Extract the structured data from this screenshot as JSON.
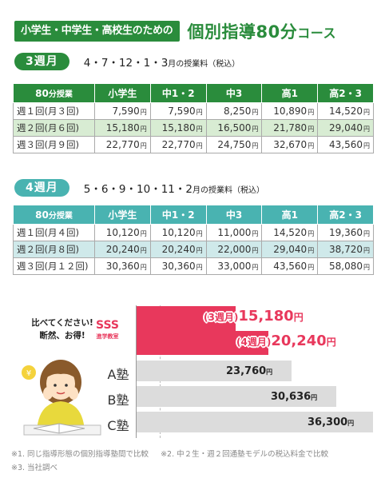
{
  "header": {
    "tag": "小学生・中学生・高校生のための",
    "title_main": "個別指導80分",
    "title_suffix": "コース"
  },
  "week3": {
    "badge": "3週月",
    "months": "4・7・12・1・3",
    "months_suffix": "月の授業料（税込）",
    "head_label": "80",
    "head_label_suffix": "分授業",
    "columns": [
      "小学生",
      "中1・2",
      "中3",
      "高1",
      "高2・3"
    ],
    "rows": [
      {
        "label": "週１回(月３回)",
        "values": [
          "7,590",
          "7,590",
          "8,250",
          "10,890",
          "14,520"
        ],
        "highlight": false
      },
      {
        "label": "週２回(月６回)",
        "values": [
          "15,180",
          "15,180",
          "16,500",
          "21,780",
          "29,040"
        ],
        "highlight": true
      },
      {
        "label": "週３回(月９回)",
        "values": [
          "22,770",
          "22,770",
          "24,750",
          "32,670",
          "43,560"
        ],
        "highlight": false
      }
    ]
  },
  "week4": {
    "badge": "4週月",
    "months": "5・6・9・10・11・2",
    "months_suffix": "月の授業料（税込）",
    "head_label": "80",
    "head_label_suffix": "分授業",
    "columns": [
      "小学生",
      "中1・2",
      "中3",
      "高1",
      "高2・3"
    ],
    "rows": [
      {
        "label": "週１回(月４回)",
        "values": [
          "10,120",
          "10,120",
          "11,000",
          "14,520",
          "19,360"
        ],
        "highlight": false
      },
      {
        "label": "週２回(月８回)",
        "values": [
          "20,240",
          "20,240",
          "22,000",
          "29,040",
          "38,720"
        ],
        "highlight": true
      },
      {
        "label": "週３回(月１２回)",
        "values": [
          "30,360",
          "30,360",
          "33,000",
          "43,560",
          "58,080"
        ],
        "highlight": false
      }
    ]
  },
  "yen_unit": "円",
  "comparison": {
    "speech_line1": "比べてください!",
    "speech_line2": "断然、お得!",
    "sss_name": "SSS",
    "sss_sub": "進学教室",
    "sss_bars": [
      {
        "prefix": "(3週月)",
        "value": 15180,
        "value_text": "15,180",
        "suffix": "円"
      },
      {
        "prefix": "(4週月)",
        "value": 20240,
        "value_text": "20,240",
        "suffix": "円"
      }
    ],
    "competitors": [
      {
        "name": "A塾",
        "value": 23760,
        "value_text": "23,760"
      },
      {
        "name": "B塾",
        "value": 30636,
        "value_text": "30,636"
      },
      {
        "name": "C塾",
        "value": 36300,
        "value_text": "36,300"
      }
    ],
    "colors": {
      "sss": "#e8385c",
      "competitor": "#dcdcdc"
    }
  },
  "notes": [
    "※1. 同じ指導形態の個別指導塾間で比較",
    "※2. 中２生・週２回通塾モデルの税込料金で比較",
    "※3. 当社調べ"
  ]
}
